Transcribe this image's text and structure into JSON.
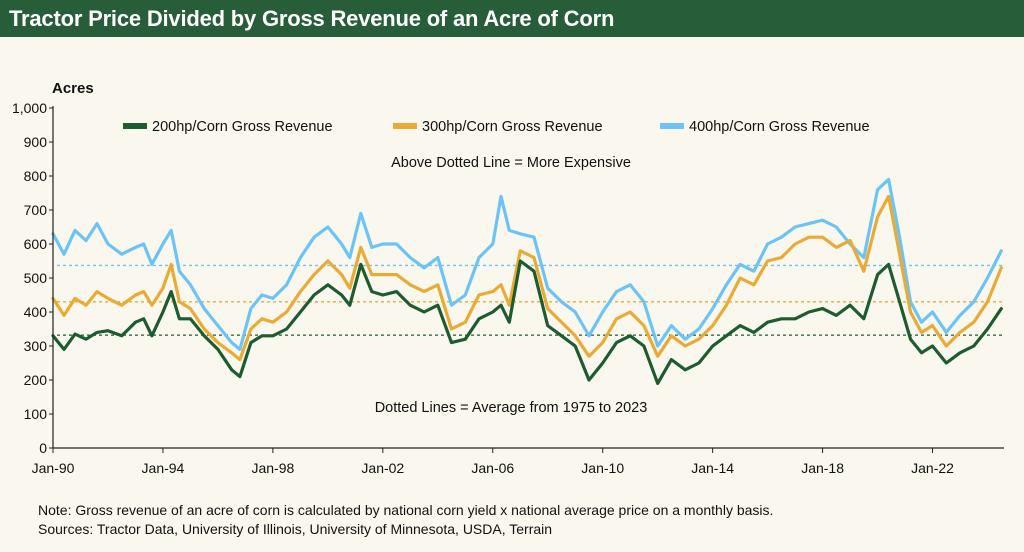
{
  "title": "Tractor Price Divided by Gross Revenue of an Acre of Corn",
  "notes": {
    "line1": "Note: Gross revenue of an acre of corn is calculated by national corn yield x national average price on a monthly basis.",
    "line2": "Sources:  Tractor Data, University of Illinois, University of Minnesota, USDA, Terrain"
  },
  "colors": {
    "title_bg": "#275d38",
    "s200": "#1e5c2f",
    "s300": "#e9ab35",
    "s400": "#6bc4f5",
    "axis": "#222222",
    "background": "#faf7ef"
  },
  "chart_data": {
    "type": "line",
    "ylabel": "Acres",
    "ylim": [
      0,
      1000
    ],
    "yticks": [
      0,
      100,
      200,
      300,
      400,
      500,
      600,
      700,
      800,
      900,
      1000
    ],
    "ytick_labels": [
      "0",
      "100",
      "200",
      "300",
      "400",
      "500",
      "600",
      "700",
      "800",
      "900",
      "1,000"
    ],
    "xlim": [
      1990,
      2024.6
    ],
    "xticks": [
      1990,
      1994,
      1998,
      2002,
      2006,
      2010,
      2014,
      2018,
      2022
    ],
    "xtick_labels": [
      "Jan-90",
      "Jan-94",
      "Jan-98",
      "Jan-02",
      "Jan-06",
      "Jan-10",
      "Jan-14",
      "Jan-18",
      "Jan-22"
    ],
    "legend_position": "top",
    "annotations": {
      "above": "Above Dotted Line = More Expensive",
      "dotted": "Dotted Lines = Average from 1975 to 2023"
    },
    "series": [
      {
        "name": "200hp/Corn Gross Revenue",
        "key": "s200",
        "average": 332,
        "x": [
          1990.0,
          1990.4,
          1990.8,
          1991.2,
          1991.6,
          1992.0,
          1992.5,
          1993.0,
          1993.3,
          1993.6,
          1994.0,
          1994.3,
          1994.6,
          1995.0,
          1995.5,
          1996.0,
          1996.5,
          1996.8,
          1997.2,
          1997.6,
          1998.0,
          1998.5,
          1999.0,
          1999.5,
          2000.0,
          2000.5,
          2000.8,
          2001.2,
          2001.6,
          2002.0,
          2002.5,
          2003.0,
          2003.5,
          2004.0,
          2004.5,
          2005.0,
          2005.5,
          2006.0,
          2006.3,
          2006.6,
          2007.0,
          2007.5,
          2008.0,
          2008.5,
          2009.0,
          2009.5,
          2010.0,
          2010.5,
          2011.0,
          2011.5,
          2012.0,
          2012.5,
          2013.0,
          2013.5,
          2014.0,
          2014.5,
          2015.0,
          2015.5,
          2016.0,
          2016.5,
          2017.0,
          2017.5,
          2018.0,
          2018.5,
          2019.0,
          2019.5,
          2020.0,
          2020.4,
          2020.8,
          2021.2,
          2021.6,
          2022.0,
          2022.5,
          2023.0,
          2023.5,
          2024.0,
          2024.5
        ],
        "y": [
          330,
          290,
          335,
          320,
          340,
          345,
          330,
          370,
          380,
          330,
          400,
          460,
          380,
          380,
          330,
          290,
          230,
          210,
          310,
          330,
          330,
          350,
          400,
          450,
          480,
          450,
          420,
          540,
          460,
          450,
          460,
          420,
          400,
          420,
          310,
          320,
          380,
          400,
          420,
          370,
          550,
          520,
          360,
          330,
          300,
          200,
          250,
          310,
          330,
          300,
          190,
          260,
          230,
          250,
          300,
          330,
          360,
          340,
          370,
          380,
          380,
          400,
          410,
          390,
          420,
          380,
          510,
          540,
          430,
          320,
          280,
          300,
          250,
          280,
          300,
          350,
          410
        ]
      },
      {
        "name": "300hp/Corn Gross Revenue",
        "key": "s300",
        "average": 430,
        "x": [
          1990.0,
          1990.4,
          1990.8,
          1991.2,
          1991.6,
          1992.0,
          1992.5,
          1993.0,
          1993.3,
          1993.6,
          1994.0,
          1994.3,
          1994.6,
          1995.0,
          1995.5,
          1996.0,
          1996.5,
          1996.8,
          1997.2,
          1997.6,
          1998.0,
          1998.5,
          1999.0,
          1999.5,
          2000.0,
          2000.5,
          2000.8,
          2001.2,
          2001.6,
          2002.0,
          2002.5,
          2003.0,
          2003.5,
          2004.0,
          2004.5,
          2005.0,
          2005.5,
          2006.0,
          2006.3,
          2006.6,
          2007.0,
          2007.5,
          2008.0,
          2008.5,
          2009.0,
          2009.5,
          2010.0,
          2010.5,
          2011.0,
          2011.5,
          2012.0,
          2012.5,
          2013.0,
          2013.5,
          2014.0,
          2014.5,
          2015.0,
          2015.5,
          2016.0,
          2016.5,
          2017.0,
          2017.5,
          2018.0,
          2018.5,
          2019.0,
          2019.5,
          2020.0,
          2020.4,
          2020.8,
          2021.2,
          2021.6,
          2022.0,
          2022.5,
          2023.0,
          2023.5,
          2024.0,
          2024.5
        ],
        "y": [
          440,
          390,
          440,
          420,
          460,
          440,
          420,
          450,
          460,
          420,
          470,
          540,
          430,
          410,
          350,
          310,
          280,
          260,
          350,
          380,
          370,
          400,
          460,
          510,
          550,
          510,
          470,
          590,
          510,
          510,
          510,
          480,
          460,
          480,
          350,
          370,
          450,
          460,
          480,
          420,
          580,
          560,
          410,
          370,
          330,
          270,
          310,
          380,
          400,
          360,
          270,
          330,
          300,
          320,
          360,
          420,
          500,
          480,
          550,
          560,
          600,
          620,
          620,
          590,
          610,
          520,
          680,
          740,
          570,
          400,
          340,
          360,
          300,
          340,
          370,
          430,
          530
        ]
      },
      {
        "name": "400hp/Corn Gross Revenue",
        "key": "s400",
        "average": 537,
        "x": [
          1990.0,
          1990.4,
          1990.8,
          1991.2,
          1991.6,
          1992.0,
          1992.5,
          1993.0,
          1993.3,
          1993.6,
          1994.0,
          1994.3,
          1994.6,
          1995.0,
          1995.5,
          1996.0,
          1996.5,
          1996.8,
          1997.2,
          1997.6,
          1998.0,
          1998.5,
          1999.0,
          1999.5,
          2000.0,
          2000.5,
          2000.8,
          2001.2,
          2001.6,
          2002.0,
          2002.5,
          2003.0,
          2003.5,
          2004.0,
          2004.5,
          2005.0,
          2005.5,
          2006.0,
          2006.3,
          2006.6,
          2007.0,
          2007.5,
          2008.0,
          2008.5,
          2009.0,
          2009.5,
          2010.0,
          2010.5,
          2011.0,
          2011.5,
          2012.0,
          2012.5,
          2013.0,
          2013.5,
          2014.0,
          2014.5,
          2015.0,
          2015.5,
          2016.0,
          2016.5,
          2017.0,
          2017.5,
          2018.0,
          2018.5,
          2019.0,
          2019.5,
          2020.0,
          2020.4,
          2020.8,
          2021.2,
          2021.6,
          2022.0,
          2022.5,
          2023.0,
          2023.5,
          2024.0,
          2024.5
        ],
        "y": [
          630,
          570,
          640,
          610,
          660,
          600,
          570,
          590,
          600,
          540,
          600,
          640,
          520,
          480,
          410,
          360,
          310,
          290,
          410,
          450,
          440,
          480,
          560,
          620,
          650,
          600,
          560,
          690,
          590,
          600,
          600,
          560,
          530,
          560,
          420,
          450,
          560,
          600,
          740,
          640,
          630,
          620,
          470,
          430,
          400,
          330,
          400,
          460,
          480,
          430,
          300,
          360,
          320,
          350,
          410,
          480,
          540,
          520,
          600,
          620,
          650,
          660,
          670,
          650,
          600,
          560,
          760,
          790,
          620,
          430,
          370,
          400,
          340,
          390,
          430,
          500,
          580
        ]
      }
    ]
  }
}
